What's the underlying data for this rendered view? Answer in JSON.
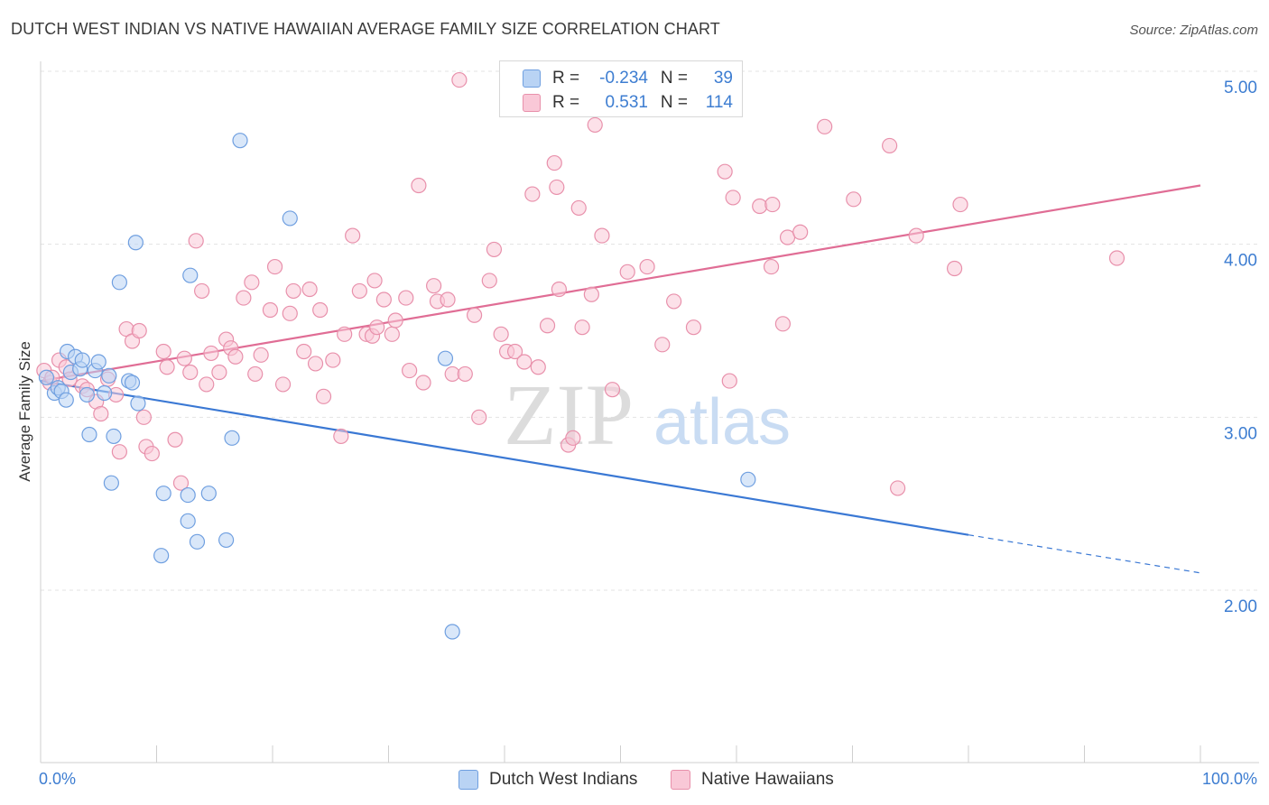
{
  "header": {
    "title": "DUTCH WEST INDIAN VS NATIVE HAWAIIAN AVERAGE FAMILY SIZE CORRELATION CHART",
    "source": "Source: ZipAtlas.com"
  },
  "watermark": {
    "zip": "ZIP",
    "atlas": "atlas"
  },
  "legend": {
    "rows": [
      {
        "r_key": "R =",
        "r_value": "-0.234",
        "n_key": "N =",
        "n_value": "39"
      },
      {
        "r_key": "R =",
        "r_value": "0.531",
        "n_key": "N =",
        "n_value": "114"
      }
    ]
  },
  "bottom_legend": [
    {
      "label": "Dutch West Indians"
    },
    {
      "label": "Native Hawaiians"
    }
  ],
  "colors": {
    "blue_fill": "#b9d3f4",
    "blue_stroke": "#6f9fe0",
    "blue_line": "#3a78d4",
    "pink_fill": "#f9c8d7",
    "pink_stroke": "#e890ab",
    "pink_line": "#e06d95",
    "tick_text": "#3d7dd1"
  },
  "chart_data": {
    "type": "scatter",
    "title": "DUTCH WEST INDIAN VS NATIVE HAWAIIAN AVERAGE FAMILY SIZE CORRELATION CHART",
    "xlabel": "",
    "ylabel": "Average Family Size",
    "xlim": [
      0,
      100
    ],
    "ylim": [
      1.0,
      5.1
    ],
    "x_tick_labels": [
      "0.0%",
      "100.0%"
    ],
    "y_ticks": [
      2.0,
      3.0,
      4.0,
      5.0
    ],
    "y_tick_labels": [
      "2.00",
      "3.00",
      "4.00",
      "5.00"
    ],
    "grid": true,
    "series": [
      {
        "name": "Dutch West Indians",
        "color": "#6f9fe0",
        "r": -0.234,
        "n": 39,
        "trend": {
          "x0": 0,
          "y0": 3.21,
          "x1": 80,
          "y1": 2.32,
          "dashed_to_x": 100,
          "dashed_to_y": 2.1
        },
        "points": [
          [
            0.5,
            3.23
          ],
          [
            1.2,
            3.14
          ],
          [
            1.5,
            3.17
          ],
          [
            1.8,
            3.15
          ],
          [
            2.2,
            3.1
          ],
          [
            2.3,
            3.38
          ],
          [
            2.6,
            3.26
          ],
          [
            3.0,
            3.35
          ],
          [
            3.4,
            3.28
          ],
          [
            3.6,
            3.33
          ],
          [
            4.0,
            3.13
          ],
          [
            4.2,
            2.9
          ],
          [
            4.7,
            3.27
          ],
          [
            5.0,
            3.32
          ],
          [
            5.5,
            3.14
          ],
          [
            5.9,
            3.24
          ],
          [
            6.1,
            2.62
          ],
          [
            6.3,
            2.89
          ],
          [
            6.8,
            3.78
          ],
          [
            7.6,
            3.21
          ],
          [
            7.9,
            3.2
          ],
          [
            8.2,
            4.01
          ],
          [
            8.4,
            3.08
          ],
          [
            10.4,
            2.2
          ],
          [
            10.6,
            2.56
          ],
          [
            12.7,
            2.55
          ],
          [
            12.7,
            2.4
          ],
          [
            12.9,
            3.82
          ],
          [
            13.5,
            2.28
          ],
          [
            14.5,
            2.56
          ],
          [
            16.0,
            2.29
          ],
          [
            16.5,
            2.88
          ],
          [
            17.2,
            4.6
          ],
          [
            21.5,
            4.15
          ],
          [
            34.9,
            3.34
          ],
          [
            35.5,
            1.76
          ],
          [
            61.0,
            2.64
          ]
        ]
      },
      {
        "name": "Native Hawaiians",
        "color": "#e890ab",
        "r": 0.531,
        "n": 114,
        "trend": {
          "x0": 0,
          "y0": 3.21,
          "x1": 100,
          "y1": 4.34
        },
        "points": [
          [
            0.3,
            3.27
          ],
          [
            0.8,
            3.2
          ],
          [
            1.0,
            3.23
          ],
          [
            1.6,
            3.33
          ],
          [
            2.2,
            3.29
          ],
          [
            2.5,
            3.22
          ],
          [
            3.6,
            3.18
          ],
          [
            4.0,
            3.16
          ],
          [
            4.8,
            3.09
          ],
          [
            5.2,
            3.02
          ],
          [
            5.8,
            3.22
          ],
          [
            6.5,
            3.13
          ],
          [
            6.8,
            2.8
          ],
          [
            7.4,
            3.51
          ],
          [
            7.9,
            3.44
          ],
          [
            8.5,
            3.5
          ],
          [
            8.9,
            3.0
          ],
          [
            9.1,
            2.83
          ],
          [
            9.6,
            2.79
          ],
          [
            10.6,
            3.38
          ],
          [
            10.9,
            3.29
          ],
          [
            11.6,
            2.87
          ],
          [
            12.1,
            2.62
          ],
          [
            12.4,
            3.34
          ],
          [
            12.9,
            3.26
          ],
          [
            13.4,
            4.02
          ],
          [
            13.9,
            3.73
          ],
          [
            14.3,
            3.19
          ],
          [
            14.7,
            3.37
          ],
          [
            15.4,
            3.26
          ],
          [
            16.0,
            3.45
          ],
          [
            16.4,
            3.4
          ],
          [
            16.8,
            3.35
          ],
          [
            17.5,
            3.69
          ],
          [
            18.2,
            3.78
          ],
          [
            18.5,
            3.25
          ],
          [
            19.0,
            3.36
          ],
          [
            19.8,
            3.62
          ],
          [
            20.2,
            3.87
          ],
          [
            20.9,
            3.19
          ],
          [
            21.5,
            3.6
          ],
          [
            21.8,
            3.73
          ],
          [
            22.7,
            3.38
          ],
          [
            23.2,
            3.74
          ],
          [
            23.7,
            3.31
          ],
          [
            24.1,
            3.62
          ],
          [
            24.4,
            3.12
          ],
          [
            25.2,
            3.33
          ],
          [
            25.9,
            2.89
          ],
          [
            26.2,
            3.48
          ],
          [
            26.9,
            4.05
          ],
          [
            27.5,
            3.73
          ],
          [
            28.1,
            3.48
          ],
          [
            28.6,
            3.47
          ],
          [
            28.8,
            3.79
          ],
          [
            29.0,
            3.52
          ],
          [
            29.6,
            3.68
          ],
          [
            30.3,
            3.48
          ],
          [
            30.6,
            3.56
          ],
          [
            31.5,
            3.69
          ],
          [
            31.8,
            3.27
          ],
          [
            32.6,
            4.34
          ],
          [
            33.0,
            3.2
          ],
          [
            33.9,
            3.76
          ],
          [
            34.2,
            3.67
          ],
          [
            35.1,
            3.68
          ],
          [
            35.5,
            3.25
          ],
          [
            36.1,
            4.95
          ],
          [
            36.6,
            3.25
          ],
          [
            37.4,
            3.59
          ],
          [
            37.8,
            3.0
          ],
          [
            38.7,
            3.79
          ],
          [
            39.1,
            3.97
          ],
          [
            39.7,
            3.48
          ],
          [
            40.2,
            3.38
          ],
          [
            40.9,
            3.38
          ],
          [
            41.7,
            3.32
          ],
          [
            42.4,
            4.29
          ],
          [
            42.9,
            3.29
          ],
          [
            43.7,
            3.53
          ],
          [
            44.3,
            4.47
          ],
          [
            44.5,
            4.33
          ],
          [
            44.7,
            3.74
          ],
          [
            45.5,
            2.84
          ],
          [
            45.9,
            2.88
          ],
          [
            46.4,
            4.21
          ],
          [
            46.7,
            3.52
          ],
          [
            47.5,
            3.71
          ],
          [
            47.8,
            4.69
          ],
          [
            48.4,
            4.05
          ],
          [
            49.3,
            3.16
          ],
          [
            50.6,
            3.84
          ],
          [
            52.3,
            3.87
          ],
          [
            53.6,
            3.42
          ],
          [
            54.6,
            3.67
          ],
          [
            56.3,
            3.52
          ],
          [
            59.0,
            4.42
          ],
          [
            59.4,
            3.21
          ],
          [
            59.7,
            4.27
          ],
          [
            62.0,
            4.22
          ],
          [
            63.0,
            3.87
          ],
          [
            63.1,
            4.23
          ],
          [
            64.0,
            3.54
          ],
          [
            64.4,
            4.04
          ],
          [
            65.5,
            4.07
          ],
          [
            67.6,
            4.68
          ],
          [
            70.1,
            4.26
          ],
          [
            73.2,
            4.57
          ],
          [
            73.9,
            2.59
          ],
          [
            75.5,
            4.05
          ],
          [
            78.8,
            3.86
          ],
          [
            79.3,
            4.23
          ],
          [
            92.8,
            3.92
          ]
        ]
      }
    ]
  }
}
